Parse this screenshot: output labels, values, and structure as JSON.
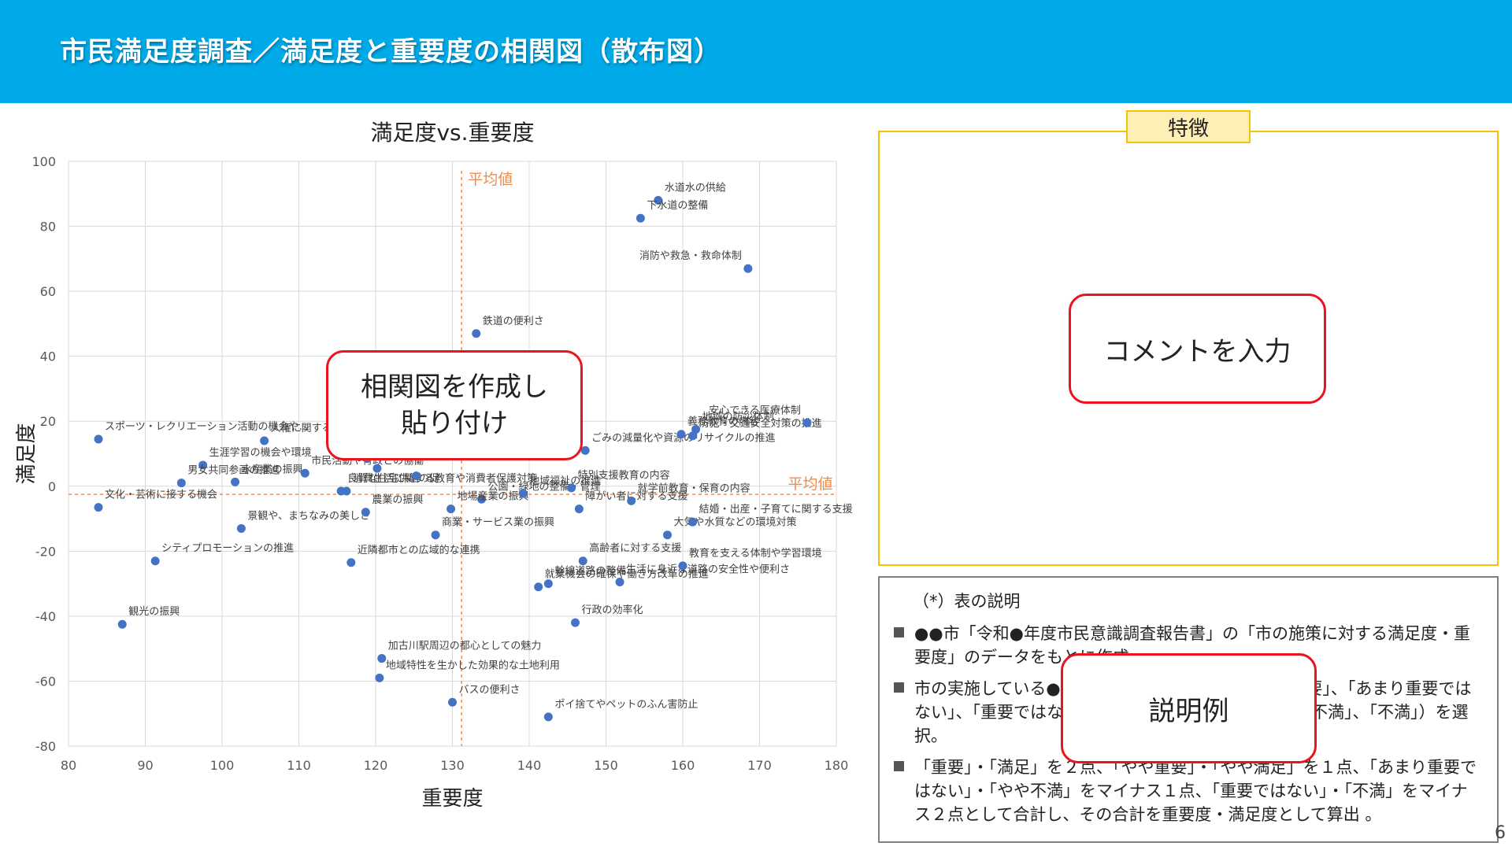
{
  "header": {
    "title": "市民満足度調査／満足度と重要度の相関図（散布図）"
  },
  "chart_data": {
    "type": "scatter",
    "title": "満足度vs.重要度",
    "xlabel": "重要度",
    "ylabel": "満足度",
    "xlim": [
      80,
      180
    ],
    "ylim": [
      -80,
      100
    ],
    "xticks": [
      "80",
      "90",
      "100",
      "110",
      "120",
      "130",
      "140",
      "150",
      "160",
      "170",
      "180"
    ],
    "yticks": [
      "-80",
      "-60",
      "-40",
      "-20",
      "0",
      "20",
      "40",
      "60",
      "80",
      "100"
    ],
    "grid": true,
    "point_color": "#4472c4",
    "avg_color": "#f08c4c",
    "avg_x": {
      "value": 131.2,
      "label": "平均値"
    },
    "avg_y": {
      "value": -2.5,
      "label": "平均値"
    },
    "points": [
      {
        "label": "水道水の供給",
        "x": 156.8,
        "y": 88
      },
      {
        "label": "下水道の整備",
        "x": 154.5,
        "y": 82.5
      },
      {
        "label": "消防や救急・救命体制",
        "x": 168.5,
        "y": 67
      },
      {
        "label": "鉄道の便利さ",
        "x": 133.1,
        "y": 47
      },
      {
        "label": "スポーツ・レクリエーション活動の機会や…",
        "x": 83.9,
        "y": 14.5
      },
      {
        "label": "良質な住宅供給の促",
        "x": 115.5,
        "y": -1.5
      },
      {
        "label": "消費生活に関する教育や消費者保護対策",
        "x": 116.2,
        "y": -1.5
      },
      {
        "label": "人権に関する教育や啓発",
        "x": 105.5,
        "y": 14
      },
      {
        "label": "生涯学習の機会や環境",
        "x": 97.5,
        "y": 6.5
      },
      {
        "label": "水産業の振興",
        "x": 101.7,
        "y": 1.3
      },
      {
        "label": "男女共同参画の推進",
        "x": 94.7,
        "y": 1
      },
      {
        "label": "文化・芸術に接する機会",
        "x": 83.9,
        "y": -6.5
      },
      {
        "label": "市民活動や行政との協働",
        "x": 110.8,
        "y": 4
      },
      {
        "label": "景観や、まちなみの美しさ",
        "x": 102.5,
        "y": -13
      },
      {
        "label": "シティプロモーションの推進",
        "x": 91.3,
        "y": -23
      },
      {
        "label": "近隣都市との広域的な連携",
        "x": 116.8,
        "y": -23.5
      },
      {
        "label": "観光の振興",
        "x": 87,
        "y": -42.5
      },
      {
        "label": "加古川駅周辺の都心としての魅力",
        "x": 120.8,
        "y": -53
      },
      {
        "label": "地域特性を生かした効果的な土地利用",
        "x": 120.5,
        "y": -59
      },
      {
        "label": "バスの便利さ",
        "x": 130,
        "y": -66.5
      },
      {
        "label": "ポイ捨てやペットのふん害防止",
        "x": 142.5,
        "y": -71
      },
      {
        "label": "工業の振興",
        "x": 118.9,
        "y": 8.5
      },
      {
        "label": "",
        "x": 120.2,
        "y": 5.5
      },
      {
        "label": "",
        "x": 125.3,
        "y": 3.2
      },
      {
        "label": "公園・緑地の整備・管理",
        "x": 133.8,
        "y": -4
      },
      {
        "label": "農業の振興",
        "x": 118.7,
        "y": -8
      },
      {
        "label": "地場産業の振興",
        "x": 129.8,
        "y": -7
      },
      {
        "label": "商業・サービス業の振興",
        "x": 127.8,
        "y": -15
      },
      {
        "label": "就業機会の確保や働き方改革の推進",
        "x": 141.2,
        "y": -31
      },
      {
        "label": "幹線道路の整備",
        "x": 142.5,
        "y": -30
      },
      {
        "label": "地域福祉の推進",
        "x": 139.2,
        "y": -2.2
      },
      {
        "label": "特別支援教育の内容",
        "x": 145.5,
        "y": -0.5
      },
      {
        "label": "障がい者に対する支援",
        "x": 146.5,
        "y": -7
      },
      {
        "label": "高齢者に対する支援",
        "x": 147,
        "y": -23
      },
      {
        "label": "行政の効率化",
        "x": 146,
        "y": -42
      },
      {
        "label": "ごみの減量化や資源のリサイクルの推進",
        "x": 147.3,
        "y": 11
      },
      {
        "label": "就学前教育・保育の内容",
        "x": 153.3,
        "y": -4.5
      },
      {
        "label": "生活に身近な道路の安全性や便利さ",
        "x": 151.8,
        "y": -29.5
      },
      {
        "label": "教育を支える体制や学習環境",
        "x": 160,
        "y": -24.5
      },
      {
        "label": "大気や水質などの環境対策",
        "x": 158,
        "y": -15
      },
      {
        "label": "結婚・出産・子育てに関する支援",
        "x": 161.3,
        "y": -11
      },
      {
        "label": "義務教育の内容",
        "x": 159.8,
        "y": 16
      },
      {
        "label": "地域の防災体制",
        "x": 161.7,
        "y": 17.5
      },
      {
        "label": "防犯・交通安全対策の推進",
        "x": 161.3,
        "y": 15.5
      },
      {
        "label": "安心できる医療体制",
        "x": 176.2,
        "y": 19.5
      }
    ]
  },
  "callouts": {
    "chart": [
      "相関図を作成し",
      "貼り付け"
    ],
    "comment": "コメントを入力",
    "explain": "説明例"
  },
  "feature": {
    "label": "特徴"
  },
  "description": {
    "title": "（*）表の説明",
    "items": [
      "●●市「令和●年度市民意識調査報告書」の「市の施策に対する満足度・重要度」のデータをもとに作成。",
      "市の実施している●●施策について「重要」、「やや重要」、「あまり重要ではない」、「重要ではない」（「満足」、「やや満足」、「やや不満」、「不満」）を選択。",
      "「重要」・「満足」を２点、「やや重要」・「やや満足」を１点、「あまり重要ではない」・「やや不満」をマイナス１点、「重要ではない」・「不満」をマイナス２点として合計し、その合計を重要度・満足度として算出 。"
    ]
  },
  "page_number": "6"
}
